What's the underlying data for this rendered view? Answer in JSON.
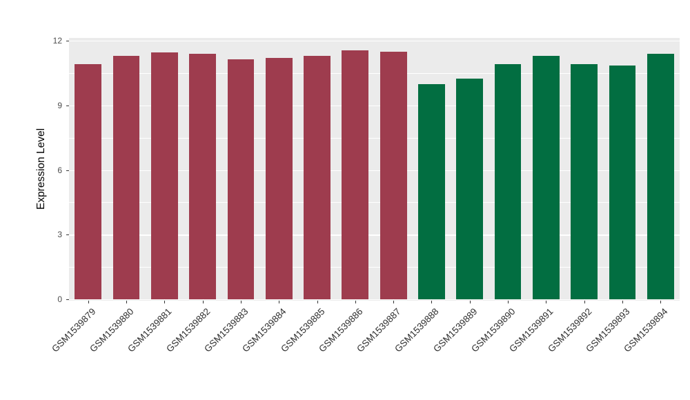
{
  "chart_data": {
    "type": "bar",
    "ylabel": "Expression Level",
    "xlabel": "",
    "categories": [
      "GSM1539879",
      "GSM1539880",
      "GSM1539881",
      "GSM1539882",
      "GSM1539883",
      "GSM1539884",
      "GSM1539885",
      "GSM1539886",
      "GSM1539887",
      "GSM1539888",
      "GSM1539889",
      "GSM1539890",
      "GSM1539891",
      "GSM1539892",
      "GSM1539893",
      "GSM1539894"
    ],
    "values": [
      10.9,
      11.3,
      11.45,
      11.4,
      11.15,
      11.2,
      11.3,
      11.55,
      11.5,
      10.0,
      10.25,
      10.9,
      11.3,
      10.9,
      10.85,
      11.4
    ],
    "colors": [
      "#9E3C4E",
      "#9E3C4E",
      "#9E3C4E",
      "#9E3C4E",
      "#9E3C4E",
      "#9E3C4E",
      "#9E3C4E",
      "#9E3C4E",
      "#9E3C4E",
      "#026E41",
      "#026E41",
      "#026E41",
      "#026E41",
      "#026E41",
      "#026E41",
      "#026E41"
    ],
    "group_colors": {
      "group1": "#9E3C4E",
      "group2": "#026E41"
    },
    "yticks": [
      0,
      3,
      6,
      9,
      12
    ],
    "ytick_labels": [
      "0",
      "3",
      "6",
      "9",
      "12"
    ],
    "yticks_minor": [
      1.5,
      4.5,
      7.5,
      10.5
    ],
    "ylim": [
      0,
      12.2
    ],
    "grid": true,
    "legend": "none",
    "panel_background": "#EBEBEB",
    "grid_color": "#FFFFFF",
    "tick_label_color": "#4D4D4D",
    "axis_title_color": "#000000"
  }
}
